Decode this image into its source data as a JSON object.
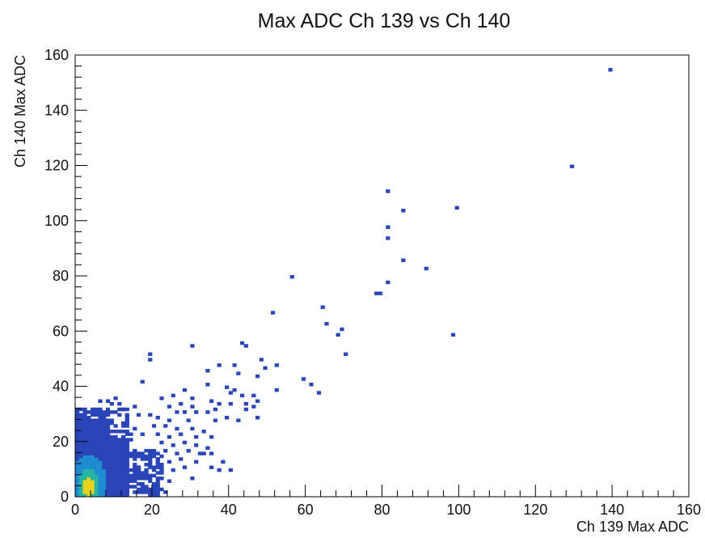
{
  "chart_data": {
    "type": "heatmap",
    "title": "Max ADC Ch 139 vs Ch 140",
    "xlabel": "Ch 139 Max ADC",
    "ylabel": "Ch 140 Max ADC",
    "xlim": [
      0,
      160
    ],
    "ylim": [
      0,
      160
    ],
    "xticks": [
      0,
      20,
      40,
      60,
      80,
      100,
      120,
      140,
      160
    ],
    "yticks": [
      0,
      20,
      40,
      60,
      80,
      100,
      120,
      140,
      160
    ],
    "grid": false,
    "legend": "none",
    "colors": {
      "low": "#2a45b8",
      "mid": "#1f8bd0",
      "high": "#26b5a3",
      "peak": "#e6d21c",
      "frame": "#000000"
    },
    "points": [
      [
        139,
        154
      ],
      [
        129,
        119
      ],
      [
        81,
        110
      ],
      [
        85,
        103
      ],
      [
        99,
        104
      ],
      [
        81,
        97
      ],
      [
        81,
        93
      ],
      [
        85,
        85
      ],
      [
        91,
        82
      ],
      [
        56,
        79
      ],
      [
        81,
        77
      ],
      [
        78,
        73
      ],
      [
        79,
        73
      ],
      [
        64,
        68
      ],
      [
        51,
        66
      ],
      [
        65,
        62
      ],
      [
        69,
        60
      ],
      [
        68,
        58
      ],
      [
        98,
        58
      ],
      [
        70,
        51
      ],
      [
        43,
        55
      ],
      [
        44,
        54
      ],
      [
        30,
        54
      ],
      [
        19,
        51
      ],
      [
        19,
        49
      ],
      [
        48,
        49
      ],
      [
        37,
        47
      ],
      [
        41,
        47
      ],
      [
        49,
        46
      ],
      [
        52,
        47
      ],
      [
        34,
        45
      ],
      [
        47,
        43
      ],
      [
        59,
        42
      ],
      [
        42,
        44
      ],
      [
        17,
        41
      ],
      [
        61,
        40
      ],
      [
        34,
        40
      ],
      [
        39,
        39
      ],
      [
        63,
        37
      ],
      [
        52,
        38
      ],
      [
        28,
        38
      ],
      [
        40,
        37
      ],
      [
        43,
        36
      ],
      [
        46,
        36
      ],
      [
        41,
        38
      ],
      [
        25,
        36
      ],
      [
        22,
        35
      ],
      [
        30,
        35
      ],
      [
        35,
        34
      ],
      [
        44,
        33
      ],
      [
        47,
        34
      ],
      [
        24,
        32
      ],
      [
        27,
        33
      ],
      [
        30,
        32
      ],
      [
        37,
        33
      ],
      [
        40,
        33
      ],
      [
        26,
        30
      ],
      [
        28,
        30
      ],
      [
        31,
        30
      ],
      [
        34,
        30
      ],
      [
        36,
        31
      ],
      [
        44,
        31
      ],
      [
        46,
        32
      ],
      [
        16,
        29
      ],
      [
        19,
        29
      ],
      [
        21,
        28
      ],
      [
        24,
        27
      ],
      [
        29,
        27
      ],
      [
        36,
        27
      ],
      [
        39,
        28
      ],
      [
        42,
        27
      ],
      [
        47,
        28
      ],
      [
        20,
        25
      ],
      [
        23,
        25
      ],
      [
        26,
        24
      ],
      [
        30,
        24
      ],
      [
        33,
        23
      ],
      [
        14,
        22
      ],
      [
        17,
        22
      ],
      [
        21,
        22
      ],
      [
        24,
        21
      ],
      [
        27,
        22
      ],
      [
        31,
        21
      ],
      [
        35,
        21
      ],
      [
        22,
        19
      ],
      [
        25,
        18
      ],
      [
        28,
        19
      ],
      [
        31,
        18
      ],
      [
        34,
        17
      ],
      [
        18,
        16
      ],
      [
        20,
        15
      ],
      [
        23,
        16
      ],
      [
        26,
        15
      ],
      [
        29,
        16
      ],
      [
        32,
        15
      ],
      [
        35,
        15
      ],
      [
        17,
        13
      ],
      [
        19,
        12
      ],
      [
        21,
        13
      ],
      [
        24,
        12
      ],
      [
        27,
        13
      ],
      [
        31,
        12
      ],
      [
        16,
        10
      ],
      [
        18,
        9
      ],
      [
        20,
        10
      ],
      [
        22,
        9
      ],
      [
        25,
        9
      ],
      [
        28,
        10
      ],
      [
        35,
        10
      ],
      [
        37,
        9
      ],
      [
        40,
        9
      ],
      [
        16,
        7
      ],
      [
        18,
        6
      ],
      [
        20,
        7
      ],
      [
        22,
        6
      ],
      [
        24,
        5
      ],
      [
        30,
        6
      ],
      [
        16,
        4
      ],
      [
        18,
        3
      ],
      [
        21,
        3
      ],
      [
        15,
        1
      ],
      [
        17,
        1
      ],
      [
        20,
        1
      ],
      [
        23,
        1
      ],
      [
        9,
        33
      ],
      [
        12,
        31
      ],
      [
        13,
        29
      ],
      [
        15,
        32
      ],
      [
        12,
        25
      ],
      [
        13,
        27
      ],
      [
        15,
        24
      ],
      [
        13,
        18
      ],
      [
        15,
        16
      ],
      [
        14,
        20
      ],
      [
        12,
        14
      ],
      [
        10,
        35
      ],
      [
        11,
        33
      ],
      [
        8,
        34
      ],
      [
        6,
        34
      ],
      [
        33,
        15
      ],
      [
        38,
        12
      ]
    ]
  }
}
